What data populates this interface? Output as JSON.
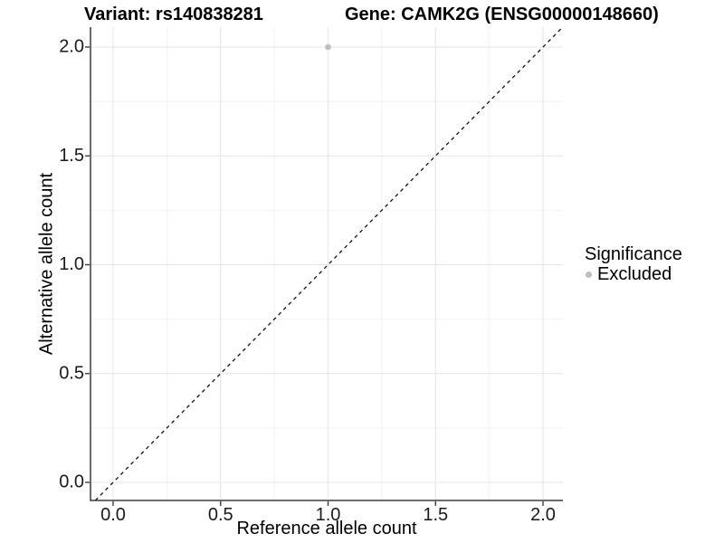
{
  "chart_data": {
    "type": "scatter",
    "title_left": "Variant: rs140838281",
    "title_right": "Gene: CAMK2G (ENSG00000148660)",
    "xlabel": "Reference allele count",
    "ylabel": "Alternative allele count",
    "xlim": [
      -0.105,
      2.093
    ],
    "ylim": [
      -0.083,
      2.092
    ],
    "x_ticks": [
      0,
      0.5,
      1,
      1.5,
      2
    ],
    "x_tick_labels": [
      "0.0",
      "0.5",
      "1.0",
      "1.5",
      "2.0"
    ],
    "y_ticks": [
      0,
      0.5,
      1,
      1.5,
      2
    ],
    "y_tick_labels": [
      "0.0",
      "0.5",
      "1.0",
      "1.5",
      "2.0"
    ],
    "grid": "major-and-minor",
    "legend_position": "right",
    "reference_line": {
      "type": "identity",
      "style": "dashed",
      "color": "#111111"
    },
    "series": [
      {
        "name": "Excluded",
        "color": "#bebebe",
        "points": [
          {
            "x": 1.0,
            "y": 2.0
          }
        ]
      }
    ],
    "legend": {
      "title": "Significance",
      "items": [
        {
          "label": "Excluded",
          "color": "#bebebe"
        }
      ]
    },
    "colors": {
      "grid_major": "#e5e5e5",
      "grid_minor": "#f2f2f2",
      "axis_line": "#3c3c3c",
      "tick_text": "#1a1a1a"
    }
  }
}
